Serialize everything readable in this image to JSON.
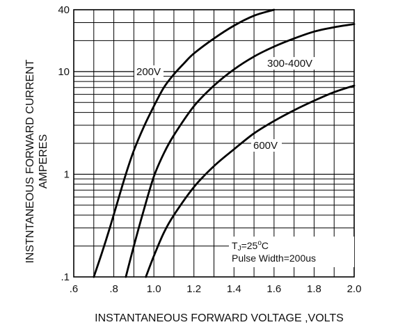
{
  "chart_data": {
    "type": "line",
    "title": "",
    "xlabel": "INSTANTANEOUS FORWARD VOLTAGE ,VOLTS",
    "ylabel_line1": "INSTNTANEOUS FORWARD CURRENT",
    "ylabel_line2": "AMPERES",
    "xlim": [
      0.6,
      2.0
    ],
    "ylim": [
      0.1,
      40
    ],
    "y_scale": "log",
    "grid": true,
    "x_ticks": [
      0.6,
      0.8,
      1.0,
      1.2,
      1.4,
      1.6,
      1.8,
      2.0
    ],
    "x_tick_labels": [
      ".6",
      ".8",
      "1.0",
      "1.2",
      "1.4",
      "1.6",
      "1.8",
      "2.0"
    ],
    "y_ticks": [
      0.1,
      1,
      10,
      40
    ],
    "y_tick_labels": [
      ".1",
      "1",
      "10",
      "40"
    ],
    "series": [
      {
        "name": "200V",
        "x": [
          0.7,
          0.74,
          0.78,
          0.82,
          0.86,
          0.9,
          0.95,
          1.0,
          1.05,
          1.1,
          1.15,
          1.2,
          1.3,
          1.4,
          1.5,
          1.6
        ],
        "y": [
          0.1,
          0.17,
          0.3,
          0.55,
          1.0,
          1.7,
          2.9,
          4.6,
          7.0,
          9.4,
          12.0,
          15.0,
          21.0,
          28.0,
          35.0,
          40.0
        ]
      },
      {
        "name": "300-400V",
        "x": [
          0.86,
          0.9,
          0.95,
          1.0,
          1.05,
          1.1,
          1.2,
          1.3,
          1.4,
          1.5,
          1.6,
          1.7,
          1.8,
          1.9,
          2.0
        ],
        "y": [
          0.1,
          0.2,
          0.45,
          0.95,
          1.6,
          2.4,
          4.6,
          7.3,
          10.5,
          14.0,
          17.5,
          21.0,
          24.5,
          27.0,
          29.0
        ]
      },
      {
        "name": "600V",
        "x": [
          0.96,
          1.0,
          1.05,
          1.1,
          1.2,
          1.3,
          1.4,
          1.5,
          1.6,
          1.7,
          1.8,
          1.9,
          2.0
        ],
        "y": [
          0.1,
          0.16,
          0.27,
          0.4,
          0.75,
          1.2,
          1.75,
          2.5,
          3.3,
          4.2,
          5.2,
          6.3,
          7.3
        ]
      }
    ],
    "annotation_line1": "T",
    "annotation_sub": "J",
    "annotation_mid": "=25",
    "annotation_sup": "o",
    "annotation_unit": "C",
    "annotation_line2": "Pulse Width=200us"
  }
}
